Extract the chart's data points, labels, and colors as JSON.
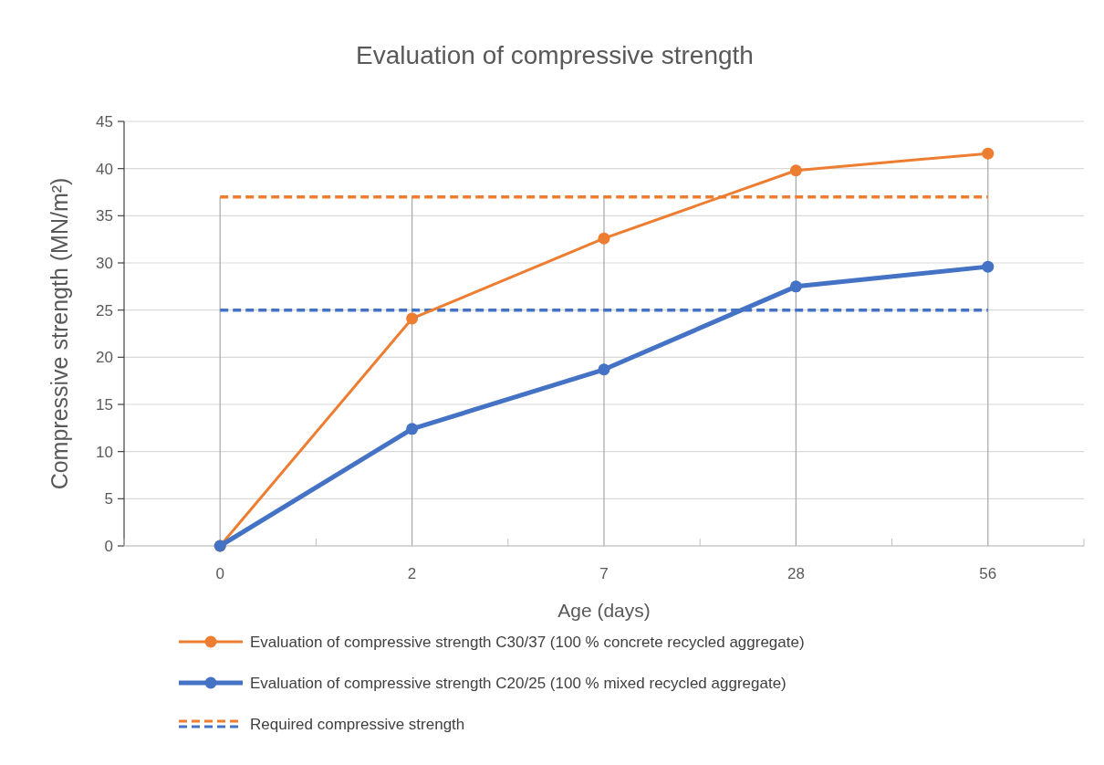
{
  "chart_data": {
    "type": "line",
    "title": "Evaluation of compressive strength",
    "xlabel": "Age (days)",
    "ylabel": "Compressive strength (MN/m²)",
    "categories": [
      "0",
      "2",
      "7",
      "28",
      "56"
    ],
    "series": [
      {
        "name": "Evaluation of compressive strength C30/37 (100 % concrete recycled aggregate)",
        "color": "#ed7d31",
        "values": [
          0,
          24.1,
          32.6,
          39.8,
          41.6
        ]
      },
      {
        "name": "Evaluation of compressive strength C20/25 (100 % mixed recycled aggregate)",
        "color": "#4472c4",
        "values": [
          0,
          12.4,
          18.7,
          27.5,
          29.6
        ]
      }
    ],
    "ref_lines": [
      {
        "axis": "y",
        "value": 37,
        "label": "Required compressive strength",
        "color": "#ed7d31",
        "line_style": "dashed"
      },
      {
        "axis": "y",
        "value": 25,
        "color": "#4472c4",
        "line_style": "dashed"
      }
    ],
    "ylim": [
      0,
      45
    ],
    "yticks": [
      0,
      5,
      10,
      15,
      20,
      25,
      30,
      35,
      40,
      45
    ],
    "grid": true,
    "legend": "bottom",
    "marker": "circle",
    "line_style": "solid"
  }
}
